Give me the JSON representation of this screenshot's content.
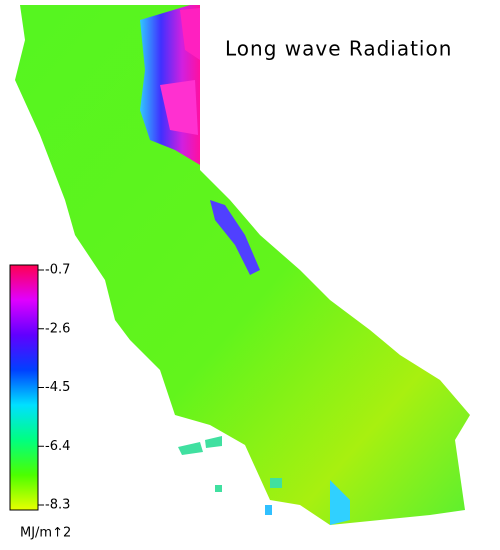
{
  "title": "Long wave Radiation",
  "colorbar": {
    "range": [
      -8.3,
      -0.7
    ],
    "ticks": [
      -0.7,
      -2.6,
      -4.5,
      -6.4,
      -8.3
    ],
    "unit": "MJ/m↑2",
    "colors": [
      "#e8ff00",
      "#4cff00",
      "#00ff80",
      "#00e0ff",
      "#0040ff",
      "#6000ff",
      "#e000ff",
      "#ff0050"
    ]
  }
}
